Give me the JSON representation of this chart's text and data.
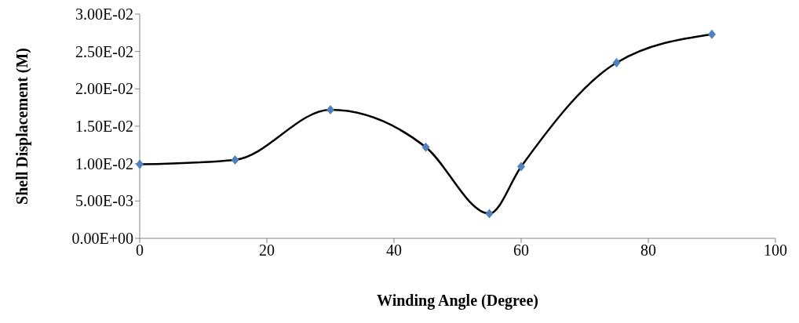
{
  "chart_data": {
    "type": "line",
    "xlabel": "Winding Angle (Degree)",
    "ylabel": "Shell Displacement (M)",
    "x": [
      0,
      15,
      30,
      45,
      55,
      60,
      75,
      90
    ],
    "series": [
      {
        "color": "#000000",
        "marker": "none",
        "values": [
          0.0099,
          0.0105,
          0.0172,
          0.0122,
          0.0033,
          0.0096,
          0.0235,
          0.0273
        ]
      },
      {
        "type": "scatter",
        "color": "#4f81bd",
        "marker": "diamond",
        "values": [
          0.0099,
          0.0105,
          0.0172,
          0.0122,
          0.0033,
          0.0096,
          0.0235,
          0.0273
        ]
      }
    ],
    "xlim": [
      0,
      100
    ],
    "xticks": [
      0,
      20,
      40,
      60,
      80,
      100
    ],
    "ylim": [
      0,
      0.03
    ],
    "yticks": [
      {
        "value": 0,
        "label": "0.00E+00"
      },
      {
        "value": 0.005,
        "label": "5.00E-03"
      },
      {
        "value": 0.01,
        "label": "1.00E-02"
      },
      {
        "value": 0.015,
        "label": "1.50E-02"
      },
      {
        "value": 0.02,
        "label": "2.00E-02"
      },
      {
        "value": 0.025,
        "label": "2.50E-02"
      },
      {
        "value": 0.03,
        "label": "3.00E-02"
      }
    ],
    "grid": false
  }
}
